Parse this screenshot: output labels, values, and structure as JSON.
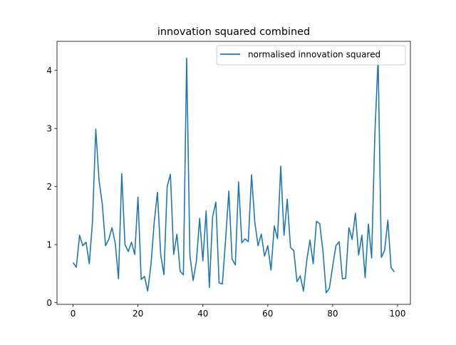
{
  "chart_data": {
    "type": "line",
    "title": "innovation squared combined",
    "xlabel": "",
    "ylabel": "",
    "xlim": [
      -4.95,
      103.95
    ],
    "ylim": [
      -0.03,
      4.5
    ],
    "xticks": [
      0,
      20,
      40,
      60,
      80,
      100
    ],
    "yticks": [
      0,
      1,
      2,
      3,
      4
    ],
    "grid": false,
    "legend": "top-right",
    "series": [
      {
        "name": "normalised innovation squared",
        "color": "#1f77b4",
        "x": [
          0,
          1,
          2,
          3,
          4,
          5,
          6,
          7,
          8,
          9,
          10,
          11,
          12,
          13,
          14,
          15,
          16,
          17,
          18,
          19,
          20,
          21,
          22,
          23,
          24,
          25,
          26,
          27,
          28,
          29,
          30,
          31,
          32,
          33,
          34,
          35,
          36,
          37,
          38,
          39,
          40,
          41,
          42,
          43,
          44,
          45,
          46,
          47,
          48,
          49,
          50,
          51,
          52,
          53,
          54,
          55,
          56,
          57,
          58,
          59,
          60,
          61,
          62,
          63,
          64,
          65,
          66,
          67,
          68,
          69,
          70,
          71,
          72,
          73,
          74,
          75,
          76,
          77,
          78,
          79,
          80,
          81,
          82,
          83,
          84,
          85,
          86,
          87,
          88,
          89,
          90,
          91,
          92,
          93,
          94,
          95,
          96,
          97,
          98,
          99
        ],
        "values": [
          0.69,
          0.61,
          1.16,
          0.98,
          1.04,
          0.67,
          1.41,
          2.99,
          2.11,
          1.7,
          0.98,
          1.09,
          1.29,
          1.02,
          0.41,
          2.22,
          1.0,
          0.88,
          1.04,
          0.83,
          1.82,
          0.4,
          0.45,
          0.2,
          0.65,
          1.38,
          1.9,
          0.83,
          0.48,
          2.0,
          2.21,
          0.83,
          1.18,
          0.54,
          0.48,
          4.21,
          0.82,
          0.38,
          0.71,
          1.45,
          0.72,
          1.58,
          0.26,
          1.48,
          1.73,
          0.34,
          0.32,
          1.08,
          1.92,
          0.75,
          0.65,
          2.08,
          1.03,
          1.1,
          1.05,
          2.2,
          1.39,
          0.98,
          1.18,
          0.8,
          0.98,
          0.56,
          1.32,
          1.1,
          2.35,
          1.16,
          1.78,
          0.95,
          0.9,
          0.36,
          0.46,
          0.2,
          0.72,
          1.08,
          0.67,
          1.4,
          1.36,
          0.89,
          0.17,
          0.25,
          0.63,
          0.98,
          1.05,
          0.41,
          0.42,
          1.29,
          1.09,
          1.54,
          0.82,
          1.16,
          0.43,
          1.35,
          0.77,
          2.91,
          4.21,
          0.78,
          0.9,
          1.42,
          0.6,
          0.53
        ]
      }
    ]
  }
}
